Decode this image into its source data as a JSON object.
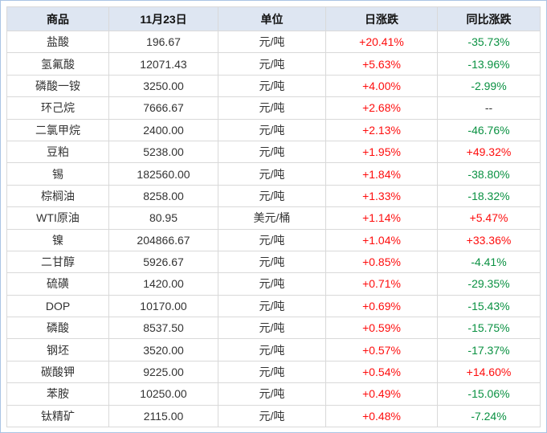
{
  "chart_data": {
    "type": "table",
    "columns": [
      "商品",
      "11月23日",
      "单位",
      "日涨跌",
      "同比涨跌"
    ],
    "rows": [
      [
        "盐酸",
        "196.67",
        "元/吨",
        "+20.41%",
        "-35.73%"
      ],
      [
        "氢氟酸",
        "12071.43",
        "元/吨",
        "+5.63%",
        "-13.96%"
      ],
      [
        "磷酸一铵",
        "3250.00",
        "元/吨",
        "+4.00%",
        "-2.99%"
      ],
      [
        "环己烷",
        "7666.67",
        "元/吨",
        "+2.68%",
        "--"
      ],
      [
        "二氯甲烷",
        "2400.00",
        "元/吨",
        "+2.13%",
        "-46.76%"
      ],
      [
        "豆粕",
        "5238.00",
        "元/吨",
        "+1.95%",
        "+49.32%"
      ],
      [
        "锡",
        "182560.00",
        "元/吨",
        "+1.84%",
        "-38.80%"
      ],
      [
        "棕榈油",
        "8258.00",
        "元/吨",
        "+1.33%",
        "-18.32%"
      ],
      [
        "WTI原油",
        "80.95",
        "美元/桶",
        "+1.14%",
        "+5.47%"
      ],
      [
        "镍",
        "204866.67",
        "元/吨",
        "+1.04%",
        "+33.36%"
      ],
      [
        "二甘醇",
        "5926.67",
        "元/吨",
        "+0.85%",
        "-4.41%"
      ],
      [
        "硫磺",
        "1420.00",
        "元/吨",
        "+0.71%",
        "-29.35%"
      ],
      [
        "DOP",
        "10170.00",
        "元/吨",
        "+0.69%",
        "-15.43%"
      ],
      [
        "磷酸",
        "8537.50",
        "元/吨",
        "+0.59%",
        "-15.75%"
      ],
      [
        "钢坯",
        "3520.00",
        "元/吨",
        "+0.57%",
        "-17.37%"
      ],
      [
        "碳酸钾",
        "9225.00",
        "元/吨",
        "+0.54%",
        "+14.60%"
      ],
      [
        "苯胺",
        "10250.00",
        "元/吨",
        "+0.49%",
        "-15.06%"
      ],
      [
        "钛精矿",
        "2115.00",
        "元/吨",
        "+0.48%",
        "-7.24%"
      ]
    ]
  },
  "colors": {
    "up_red": "#fe0d0d",
    "down_green": "#0a9142",
    "neutral": "#333333",
    "header_bg": "#dee6f2",
    "cell_border": "#d9d9d9",
    "outer_border": "#aac4e4"
  }
}
